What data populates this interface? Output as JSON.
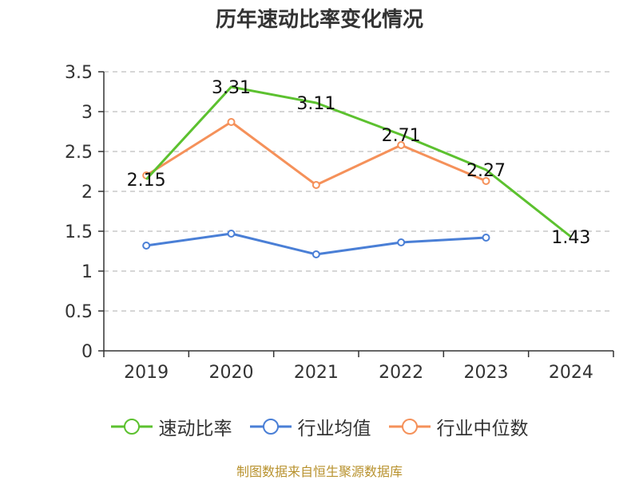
{
  "chart_data": {
    "type": "line",
    "title": "历年速动比率变化情况",
    "categories": [
      "2019",
      "2020",
      "2021",
      "2022",
      "2023",
      "2024"
    ],
    "ylim": [
      0,
      3.5
    ],
    "yticks": [
      "0",
      "0.5",
      "1",
      "1.5",
      "2",
      "2.5",
      "3",
      "3.5"
    ],
    "ytick_values": [
      0,
      0.5,
      1,
      1.5,
      2,
      2.5,
      3,
      3.5
    ],
    "grid": true,
    "legend_position": "bottom",
    "series": [
      {
        "name": "速动比率",
        "color": "#5cc12f",
        "values": [
          2.15,
          3.31,
          3.11,
          2.71,
          2.27,
          1.43
        ],
        "labels": [
          "2.15",
          "3.31",
          "3.11",
          "2.71",
          "2.27",
          "1.43"
        ],
        "show_markers": false
      },
      {
        "name": "行业均值",
        "color": "#4a7fd6",
        "values": [
          1.32,
          1.47,
          1.21,
          1.36,
          1.42,
          null
        ],
        "show_markers": true
      },
      {
        "name": "行业中位数",
        "color": "#f5915a",
        "values": [
          2.2,
          2.87,
          2.08,
          2.58,
          2.13,
          null
        ],
        "show_markers": true
      }
    ]
  },
  "source_text": "制图数据来自恒生聚源数据库"
}
